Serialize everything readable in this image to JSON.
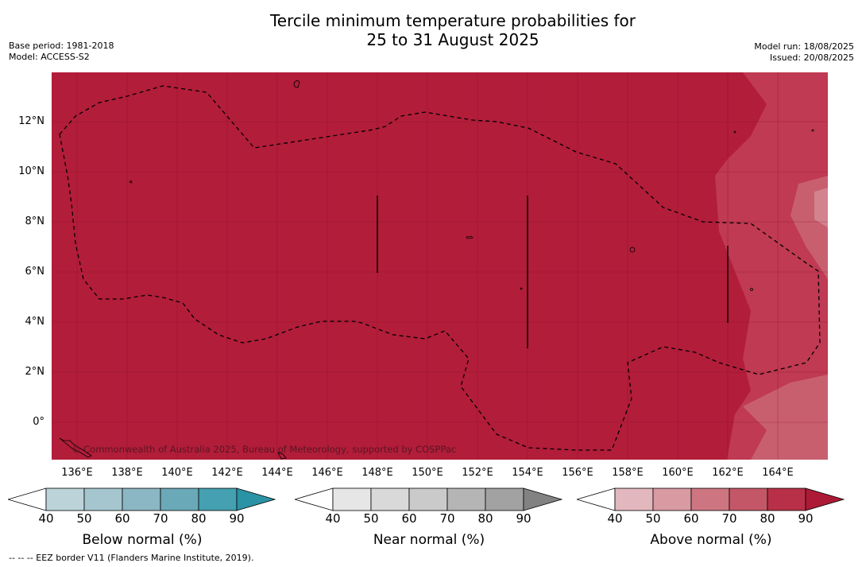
{
  "title_line1": "Tercile minimum temperature probabilities for",
  "title_line2": "25 to 31 August 2025",
  "meta_left": [
    "Base period: 1981-2018",
    "Model: ACCESS-S2"
  ],
  "meta_right": [
    "Model run: 18/08/2025",
    "Issued: 20/08/2025"
  ],
  "copyright": "© Commonwealth of Australia 2025, Bureau of Meteorology, supported by COSPPac",
  "footnote": "--  --  -- EEZ border V11 (Flanders Marine Institute, 2019).",
  "map": {
    "lat_labels": [
      "12°N",
      "10°N",
      "8°N",
      "6°N",
      "4°N",
      "2°N",
      "0°"
    ],
    "lon_labels": [
      "136°E",
      "138°E",
      "140°E",
      "142°E",
      "144°E",
      "146°E",
      "148°E",
      "150°E",
      "152°E",
      "154°E",
      "156°E",
      "158°E",
      "160°E",
      "162°E",
      "164°E"
    ],
    "dominant_category": "Above normal",
    "dominant_level": "90",
    "colors": {
      "above_90": "#b21d3a",
      "above_80": "#bf3a52",
      "above_70": "#c85f6f",
      "above_60": "#d2838e"
    }
  },
  "colorbars": [
    {
      "title": "Below normal (%)",
      "ticks": [
        "40",
        "50",
        "60",
        "70",
        "80",
        "90"
      ],
      "colors": [
        "#ffffff",
        "#bdd3da",
        "#a5c6cf",
        "#8bb6c3",
        "#6aa9b8",
        "#45a0b1",
        "#2a93a5"
      ]
    },
    {
      "title": "Near normal (%)",
      "ticks": [
        "40",
        "50",
        "60",
        "70",
        "80",
        "90"
      ],
      "colors": [
        "#ffffff",
        "#e6e6e6",
        "#d9d9d9",
        "#cacaca",
        "#b5b5b5",
        "#a2a2a2",
        "#828282"
      ]
    },
    {
      "title": "Above normal (%)",
      "ticks": [
        "40",
        "50",
        "60",
        "70",
        "80",
        "90"
      ],
      "colors": [
        "#ffffff",
        "#e2b7be",
        "#d99aa2",
        "#cd7681",
        "#c35767",
        "#b83048",
        "#ad1a35"
      ]
    }
  ]
}
